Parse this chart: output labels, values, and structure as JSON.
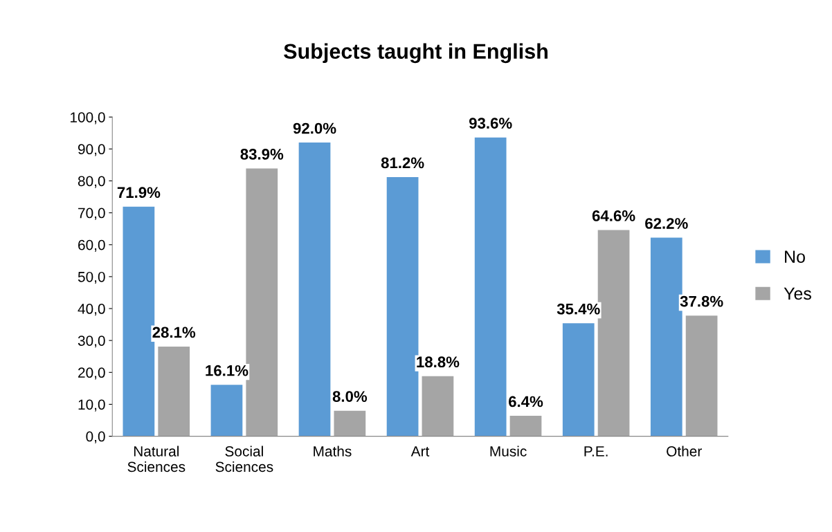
{
  "chart_data": {
    "type": "bar",
    "title": "Subjects taught in English",
    "categories": [
      "Natural\nSciences",
      "Social\nSciences",
      "Maths",
      "Art",
      "Music",
      "P.E.",
      "Other"
    ],
    "series": [
      {
        "name": "No",
        "color": "#5b9bd5",
        "values": [
          71.9,
          16.1,
          92.0,
          81.2,
          93.6,
          35.4,
          62.2
        ],
        "value_labels": [
          "71.9%",
          "16.1%",
          "92.0%",
          "81.2%",
          "93.6%",
          "35.4%",
          "62.2%"
        ]
      },
      {
        "name": "Yes",
        "color": "#a5a5a5",
        "values": [
          28.1,
          83.9,
          8.0,
          18.8,
          6.4,
          64.6,
          37.8
        ],
        "value_labels": [
          "28.1%",
          "83.9%",
          "8.0%",
          "18.8%",
          "6.4%",
          "64.6%",
          "37.8%"
        ]
      }
    ],
    "ylim": [
      0,
      100
    ],
    "yticks": [
      {
        "value": 0,
        "label": "0,0"
      },
      {
        "value": 10,
        "label": "10,0"
      },
      {
        "value": 20,
        "label": "20,0"
      },
      {
        "value": 30,
        "label": "30,0"
      },
      {
        "value": 40,
        "label": "40,0"
      },
      {
        "value": 50,
        "label": "50,0"
      },
      {
        "value": 60,
        "label": "60,0"
      },
      {
        "value": 70,
        "label": "70,0"
      },
      {
        "value": 80,
        "label": "80,0"
      },
      {
        "value": 90,
        "label": "90,0"
      },
      {
        "value": 100,
        "label": "100,0"
      }
    ],
    "grid": false,
    "legend": "right"
  }
}
